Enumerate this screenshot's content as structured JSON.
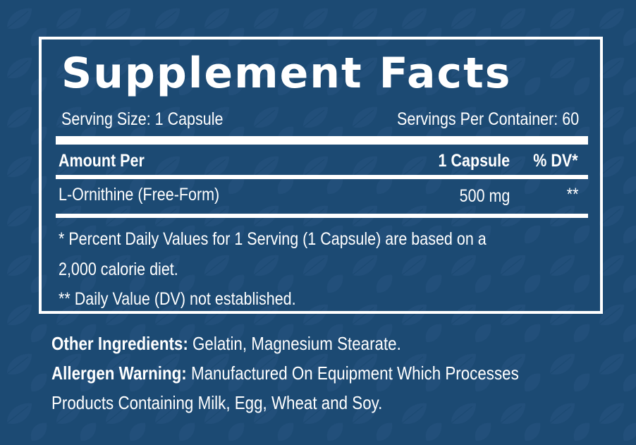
{
  "title": "Supplement Facts",
  "serving_size": "Serving Size: 1 Capsule",
  "servings_per_container": "Servings Per Container: 60",
  "header": {
    "amount_per": "Amount Per",
    "per_capsule": "1 Capsule",
    "dv": "% DV*"
  },
  "ingredients": [
    {
      "name": "L-Ornithine (Free-Form)",
      "amount": "500 mg",
      "dv": "**"
    }
  ],
  "footnotes": {
    "line1": "* Percent Daily Values for 1 Serving (1 Capsule) are based on a",
    "line2": "2,000 calorie diet.",
    "line3": "** Daily Value (DV) not established."
  },
  "other_ingredients": {
    "label": "Other Ingredients:",
    "text": " Gelatin, Magnesium Stearate."
  },
  "allergen_warning": {
    "label": "Allergen Warning:",
    "text": " Manufactured On Equipment Which Processes",
    "text2": "Products Containing Milk, Egg, Wheat and Soy."
  },
  "colors": {
    "background": "#1c4a73",
    "leaf_pattern": "#234f7a",
    "text": "#ffffff"
  }
}
